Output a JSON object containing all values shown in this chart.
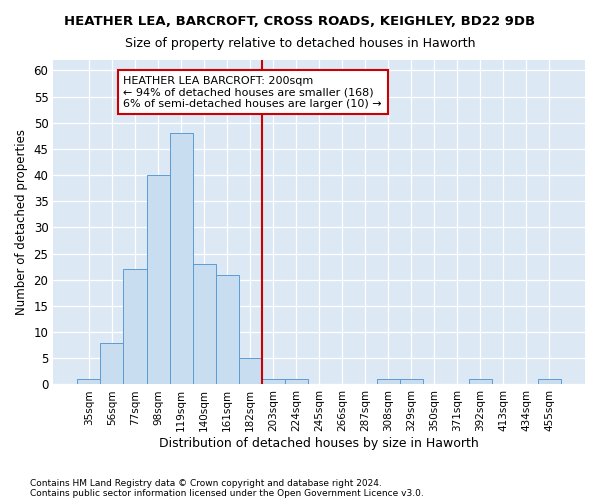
{
  "title": "HEATHER LEA, BARCROFT, CROSS ROADS, KEIGHLEY, BD22 9DB",
  "subtitle": "Size of property relative to detached houses in Haworth",
  "xlabel": "Distribution of detached houses by size in Haworth",
  "ylabel": "Number of detached properties",
  "bin_labels": [
    "35sqm",
    "56sqm",
    "77sqm",
    "98sqm",
    "119sqm",
    "140sqm",
    "161sqm",
    "182sqm",
    "203sqm",
    "224sqm",
    "245sqm",
    "266sqm",
    "287sqm",
    "308sqm",
    "329sqm",
    "350sqm",
    "371sqm",
    "392sqm",
    "413sqm",
    "434sqm",
    "455sqm"
  ],
  "bar_values": [
    1,
    8,
    22,
    40,
    48,
    23,
    21,
    5,
    1,
    1,
    0,
    0,
    0,
    1,
    1,
    0,
    0,
    1,
    0,
    0,
    1
  ],
  "bar_color": "#c8ddf0",
  "bar_edge_color": "#5b9bd5",
  "vline_x": 8.0,
  "vline_color": "#cc0000",
  "ylim": [
    0,
    62
  ],
  "yticks": [
    0,
    5,
    10,
    15,
    20,
    25,
    30,
    35,
    40,
    45,
    50,
    55,
    60
  ],
  "annotation_text": "HEATHER LEA BARCROFT: 200sqm\n← 94% of detached houses are smaller (168)\n6% of semi-detached houses are larger (10) →",
  "annotation_box_color": "#ffffff",
  "annotation_box_edge": "#cc0000",
  "footnote1": "Contains HM Land Registry data © Crown copyright and database right 2024.",
  "footnote2": "Contains public sector information licensed under the Open Government Licence v3.0.",
  "bg_color": "#ffffff",
  "plot_bg_color": "#dce9f5"
}
